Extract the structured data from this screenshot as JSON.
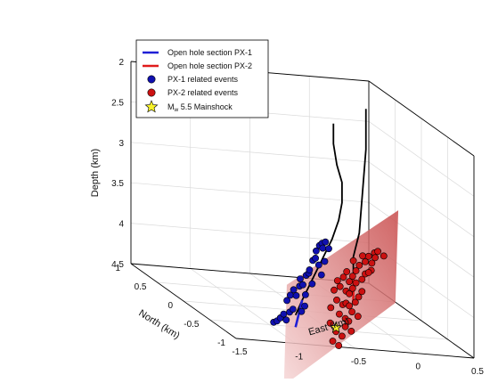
{
  "chart_data": {
    "type": "scatter3d",
    "axes": {
      "depth": {
        "label": "Depth (km)",
        "range": [
          2,
          4.5
        ],
        "ticks": [
          2,
          2.5,
          3,
          3.5,
          4,
          4.5
        ],
        "tick_labels": [
          "2",
          "2.5",
          "3",
          "3.5",
          "4",
          "4.5"
        ],
        "reversed": true
      },
      "north": {
        "label": "North (km)",
        "range": [
          -1,
          1
        ],
        "ticks": [
          1,
          0.5,
          0,
          -0.5,
          -1
        ],
        "tick_labels": [
          "1",
          "0.5",
          "0",
          "-0.5",
          "-1"
        ]
      },
      "east": {
        "label": "East (km)",
        "range": [
          -1.5,
          0.5
        ],
        "ticks": [
          -1.5,
          -1,
          -0.5,
          0,
          0.5
        ],
        "tick_labels": [
          "-1.5",
          "-1",
          "-0.5",
          "0",
          "0.5"
        ]
      }
    },
    "grid": true,
    "box": true,
    "legend": {
      "placement": "top-left",
      "entries": [
        {
          "label": "Open hole section PX-1",
          "marker": "line",
          "color": "#1f1fd6"
        },
        {
          "label": "Open hole section PX-2",
          "marker": "line",
          "color": "#e01b1b"
        },
        {
          "label": "PX-1 related events",
          "marker": "circle",
          "color": "#1010b0"
        },
        {
          "label": "PX-2 related events",
          "marker": "circle",
          "color": "#cc1111"
        },
        {
          "label_main": "M",
          "label_sub": "w",
          "label_rest": " 5.5 Mainshock",
          "marker": "star",
          "color": "#f7f22a"
        }
      ]
    },
    "wells": {
      "PX-1": [
        [
          -0.35,
          -0.25,
          2.05
        ],
        [
          -0.35,
          -0.25,
          2.3
        ],
        [
          -0.33,
          -0.27,
          2.55
        ],
        [
          -0.3,
          -0.3,
          2.75
        ],
        [
          -0.3,
          -0.3,
          3.0
        ],
        [
          -0.35,
          -0.35,
          3.2
        ],
        [
          -0.45,
          -0.45,
          3.4
        ],
        [
          -0.6,
          -0.6,
          3.6
        ],
        [
          -0.75,
          -0.75,
          3.8
        ],
        [
          -0.9,
          -0.9,
          4.0
        ],
        [
          -1.0,
          -1.0,
          4.15
        ]
      ],
      "PX-1_open": [
        [
          -0.9,
          -0.9,
          4.0
        ],
        [
          -1.0,
          -1.0,
          4.3
        ]
      ],
      "PX-2": [
        [
          0.1,
          0.15,
          2.0
        ],
        [
          0.1,
          0.15,
          2.5
        ],
        [
          0.05,
          0.1,
          3.0
        ],
        [
          0.0,
          0.05,
          3.5
        ],
        [
          -0.05,
          0.05,
          3.8
        ],
        [
          -0.05,
          0.05,
          4.0
        ]
      ],
      "PX-2_open": [
        [
          -0.05,
          0.05,
          4.0
        ],
        [
          -0.05,
          0.05,
          4.35
        ]
      ]
    },
    "fault_plane": [
      [
        0.35,
        0.1,
        3.2
      ],
      [
        -0.3,
        0.75,
        4.5
      ],
      [
        -0.7,
        -0.1,
        5.4
      ],
      [
        -0.05,
        -0.75,
        4.0
      ]
    ],
    "series": [
      {
        "name": "PX-1 related events",
        "color": "#1010b0",
        "points": [
          [
            -1.25,
            -1.15,
            4.2
          ],
          [
            -1.2,
            -1.1,
            4.2
          ],
          [
            -1.15,
            -1.05,
            4.18
          ],
          [
            -1.1,
            -1.0,
            4.15
          ],
          [
            -1.1,
            -1.05,
            4.2
          ],
          [
            -1.05,
            -1.0,
            4.12
          ],
          [
            -1.0,
            -0.95,
            4.1
          ],
          [
            -1.05,
            -0.95,
            4.0
          ],
          [
            -1.0,
            -0.9,
            3.95
          ],
          [
            -0.95,
            -0.9,
            3.95
          ],
          [
            -0.95,
            -0.85,
            3.9
          ],
          [
            -0.9,
            -0.85,
            3.85
          ],
          [
            -0.85,
            -0.8,
            3.85
          ],
          [
            -0.85,
            -0.75,
            3.8
          ],
          [
            -0.8,
            -0.75,
            3.75
          ],
          [
            -0.8,
            -0.8,
            3.7
          ],
          [
            -0.75,
            -0.7,
            3.7
          ],
          [
            -0.7,
            -0.65,
            3.6
          ],
          [
            -0.7,
            -0.7,
            3.55
          ],
          [
            -0.65,
            -0.6,
            3.5
          ],
          [
            -0.6,
            -0.55,
            3.45
          ],
          [
            -0.6,
            -0.6,
            3.4
          ],
          [
            -0.55,
            -0.55,
            3.4
          ],
          [
            -0.55,
            -0.5,
            3.5
          ],
          [
            -0.5,
            -0.5,
            3.5
          ],
          [
            -0.65,
            -0.65,
            3.65
          ],
          [
            -0.75,
            -0.75,
            3.85
          ],
          [
            -0.9,
            -0.95,
            4.05
          ],
          [
            -0.95,
            -1.0,
            4.1
          ],
          [
            -0.85,
            -0.85,
            3.95
          ],
          [
            -0.65,
            -0.7,
            3.75
          ],
          [
            -0.6,
            -0.65,
            3.6
          ]
        ]
      },
      {
        "name": "PX-2 related events",
        "color": "#cc1111",
        "points": [
          [
            -0.2,
            -0.1,
            4.0
          ],
          [
            -0.15,
            -0.1,
            4.05
          ],
          [
            -0.1,
            -0.05,
            4.0
          ],
          [
            -0.05,
            0.0,
            3.95
          ],
          [
            0.0,
            0.05,
            3.9
          ],
          [
            0.05,
            0.05,
            3.85
          ],
          [
            0.1,
            0.1,
            3.8
          ],
          [
            0.15,
            0.1,
            3.75
          ],
          [
            0.2,
            0.15,
            3.75
          ],
          [
            -0.25,
            -0.15,
            4.1
          ],
          [
            -0.2,
            -0.15,
            4.15
          ],
          [
            -0.15,
            -0.1,
            4.2
          ],
          [
            -0.1,
            -0.05,
            4.15
          ],
          [
            -0.05,
            0.0,
            4.1
          ],
          [
            0.0,
            0.0,
            4.05
          ],
          [
            0.05,
            0.05,
            4.0
          ],
          [
            0.1,
            0.05,
            3.95
          ],
          [
            -0.3,
            -0.2,
            4.25
          ],
          [
            -0.25,
            -0.2,
            4.3
          ],
          [
            -0.2,
            -0.15,
            4.3
          ],
          [
            -0.15,
            -0.1,
            4.35
          ],
          [
            -0.1,
            -0.1,
            4.3
          ],
          [
            -0.3,
            -0.25,
            4.4
          ],
          [
            -0.25,
            -0.25,
            4.45
          ],
          [
            -0.2,
            -0.2,
            4.5
          ],
          [
            -0.35,
            -0.3,
            4.6
          ],
          [
            -0.3,
            -0.3,
            4.65
          ],
          [
            -0.4,
            -0.35,
            4.7
          ],
          [
            -0.35,
            -0.35,
            4.75
          ],
          [
            -0.25,
            -0.25,
            4.55
          ],
          [
            -0.15,
            -0.15,
            4.4
          ],
          [
            0.0,
            0.0,
            4.2
          ],
          [
            0.1,
            0.1,
            4.0
          ],
          [
            0.15,
            0.15,
            3.9
          ],
          [
            -0.05,
            -0.05,
            4.25
          ],
          [
            -0.1,
            -0.15,
            4.45
          ],
          [
            -0.2,
            -0.25,
            4.6
          ],
          [
            -0.05,
            0.05,
            3.85
          ],
          [
            0.05,
            0.1,
            3.8
          ],
          [
            -0.15,
            -0.05,
            3.95
          ],
          [
            -0.25,
            -0.1,
            4.05
          ],
          [
            -0.3,
            -0.15,
            4.15
          ],
          [
            0.2,
            0.2,
            3.85
          ],
          [
            0.25,
            0.15,
            3.8
          ],
          [
            -0.4,
            -0.3,
            4.5
          ],
          [
            -0.35,
            -0.2,
            4.35
          ]
        ]
      },
      {
        "name": "Mw 5.5 Mainshock",
        "color": "#f7f22a",
        "points": [
          [
            -0.35,
            -0.3,
            4.55
          ]
        ]
      }
    ]
  }
}
